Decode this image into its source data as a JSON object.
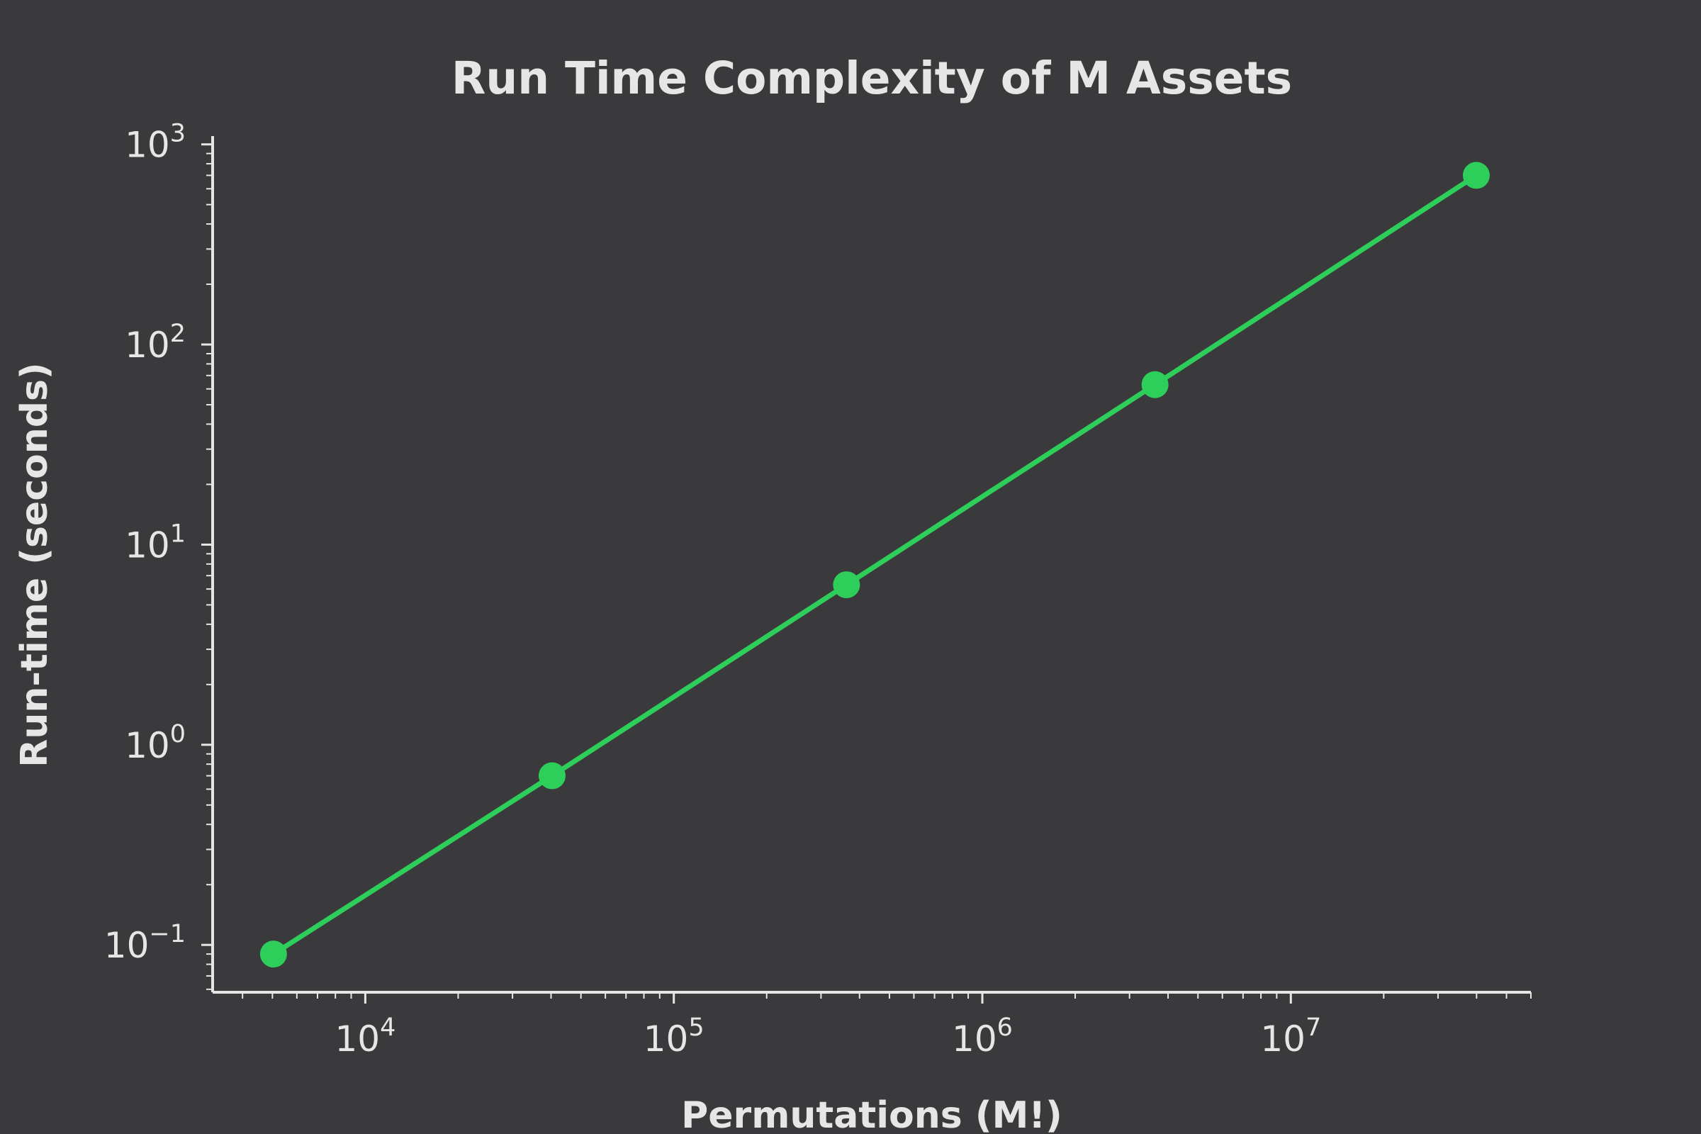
{
  "chart_data": {
    "type": "line",
    "title": "Run Time Complexity of M Assets",
    "xlabel": "Permutations (M!)",
    "ylabel": "Run-time (seconds)",
    "xscale": "log",
    "yscale": "log",
    "xlim": [
      3200,
      60000000
    ],
    "ylim": [
      0.058,
      1100
    ],
    "grid": false,
    "x_ticks": [
      {
        "base": "10",
        "exp": "4"
      },
      {
        "base": "10",
        "exp": "5"
      },
      {
        "base": "10",
        "exp": "6"
      },
      {
        "base": "10",
        "exp": "7"
      }
    ],
    "y_ticks": [
      {
        "base": "10",
        "exp": "−1"
      },
      {
        "base": "10",
        "exp": "0"
      },
      {
        "base": "10",
        "exp": "1"
      },
      {
        "base": "10",
        "exp": "2"
      },
      {
        "base": "10",
        "exp": "3"
      }
    ],
    "series": [
      {
        "x": [
          5040,
          40320,
          362880,
          3628800,
          39916800
        ],
        "y": [
          0.09,
          0.7,
          6.3,
          63,
          700
        ]
      }
    ],
    "colors": {
      "line": "#2dce59",
      "axis": "#e6e6e6",
      "background": "#3a3a3c"
    }
  }
}
